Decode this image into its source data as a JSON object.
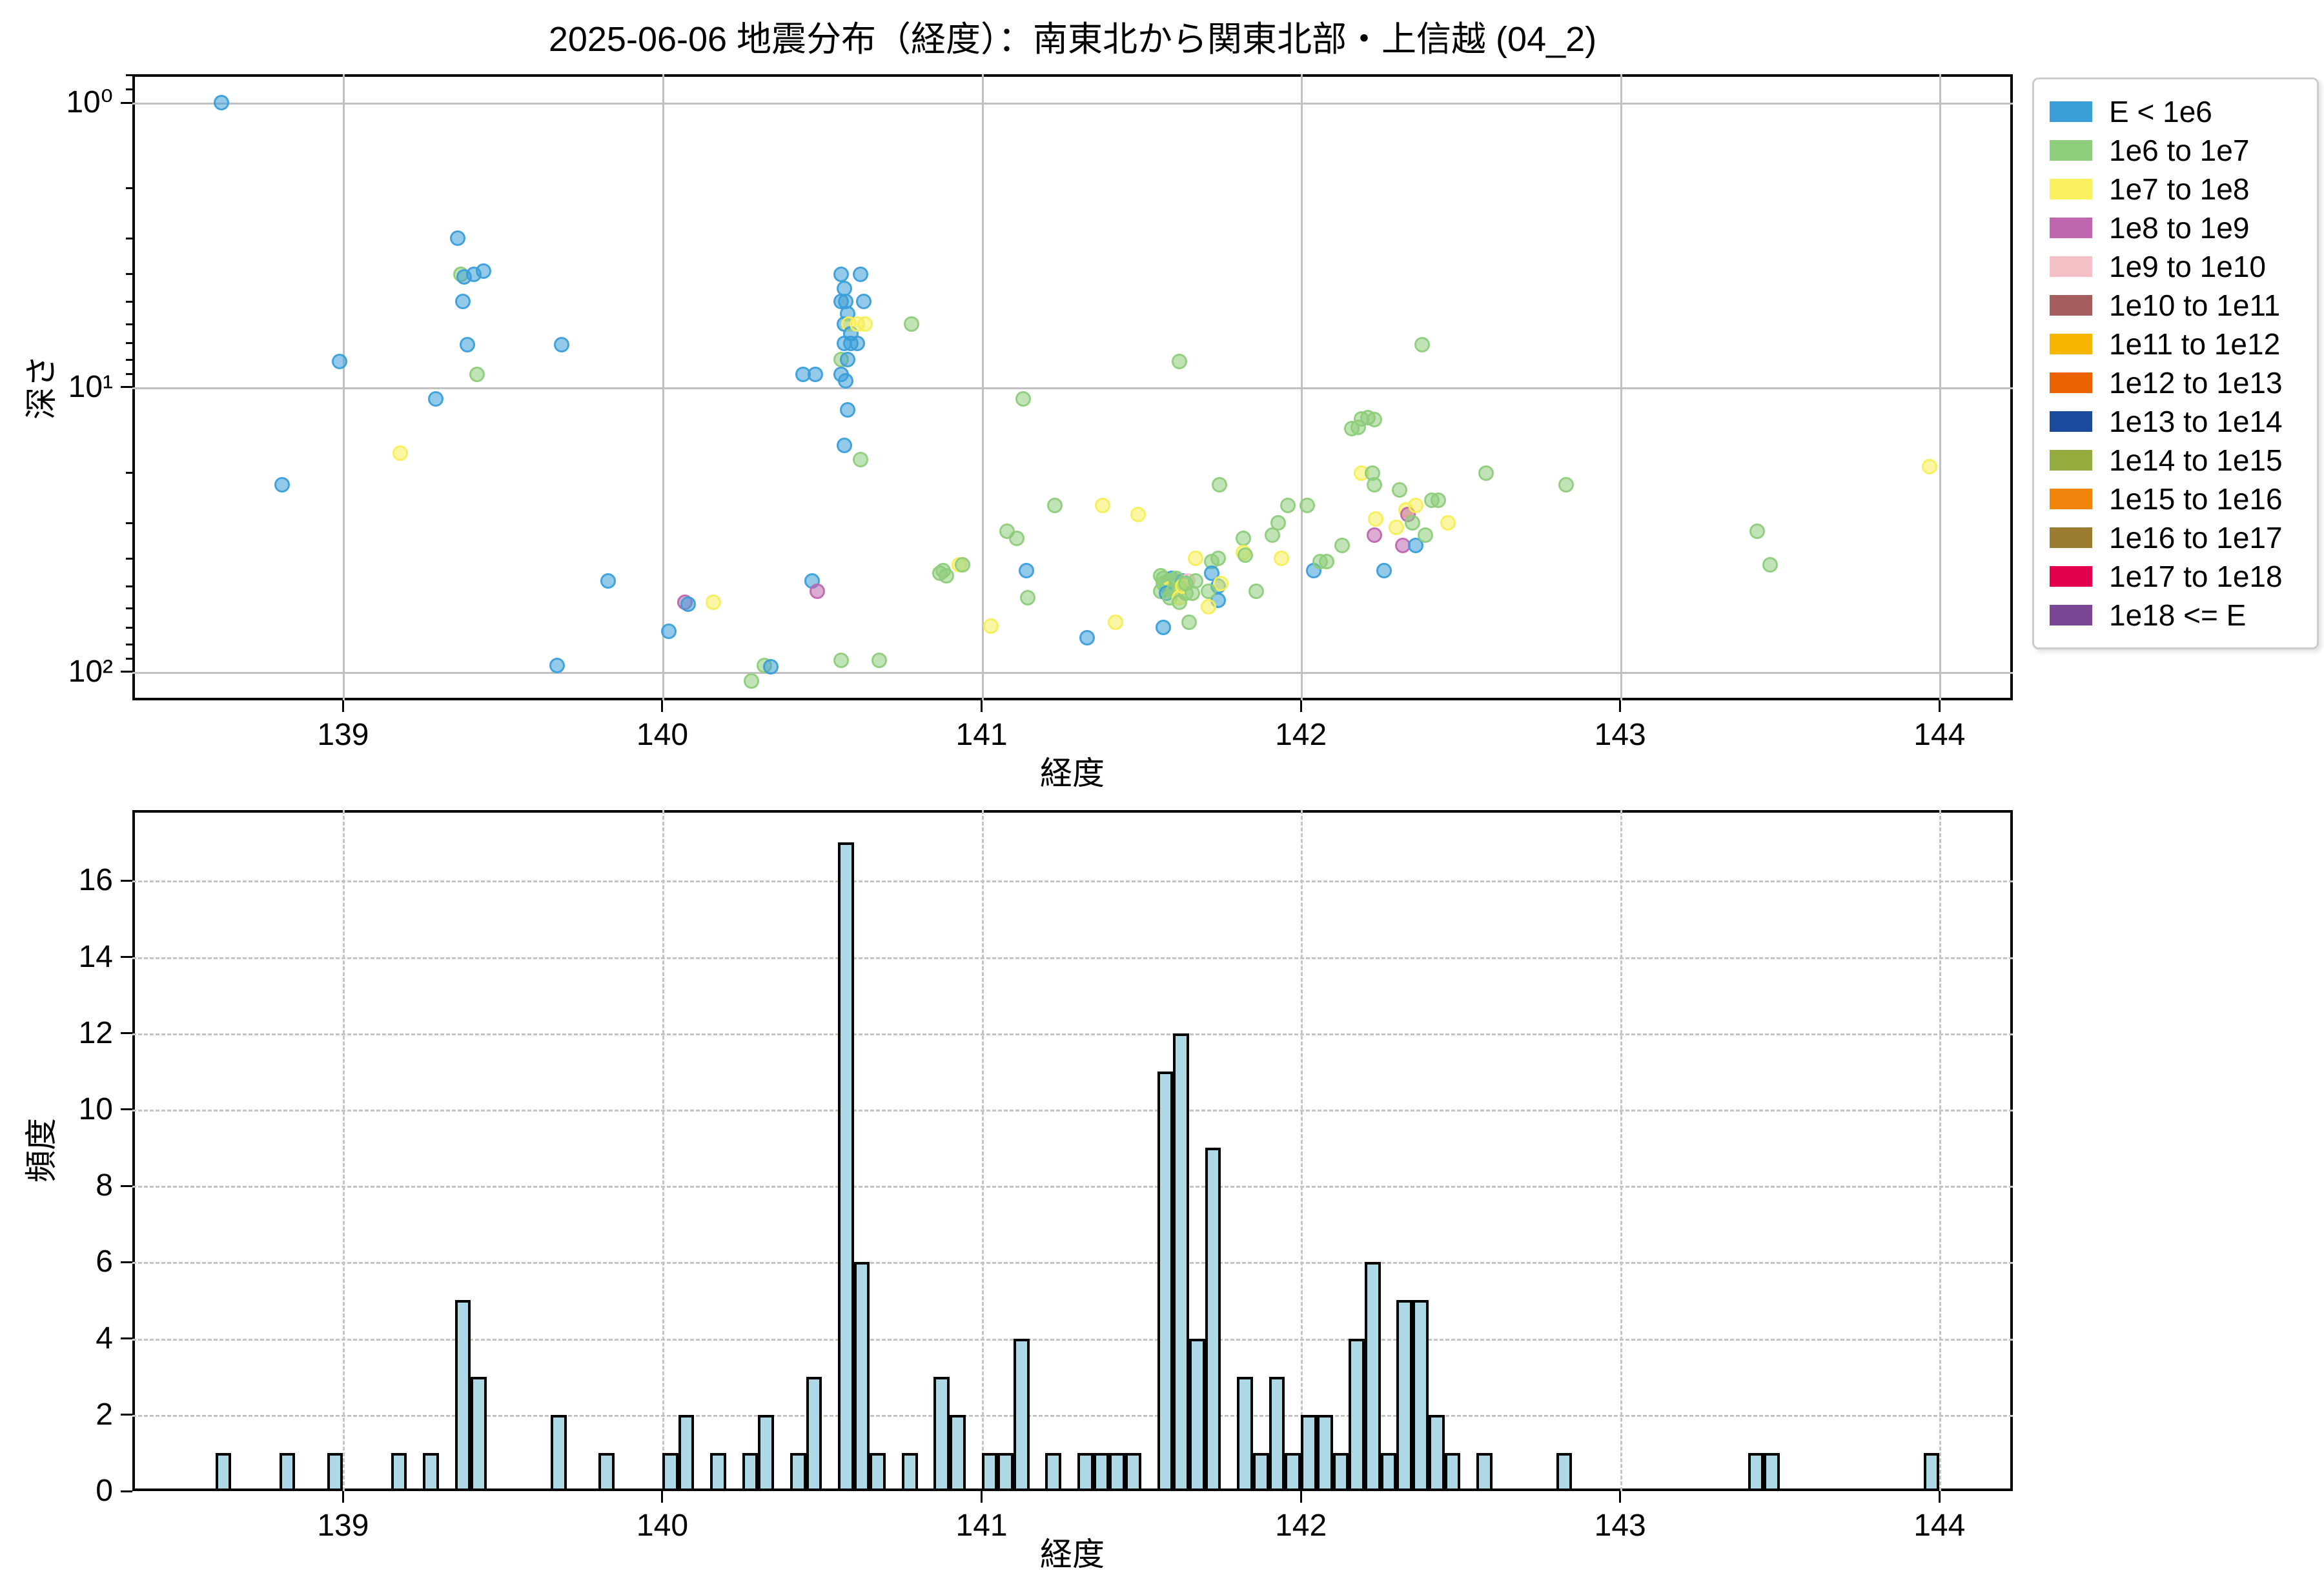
{
  "title": "2025-06-06 地震分布（経度）：南東北から関東北部・上信越 (04_2)",
  "point_colors": {
    "b": "#3A9FD9",
    "g": "#8ECD7C",
    "y": "#F6EE58",
    "m": "#BF66B0",
    "p": "#F5BFC6"
  },
  "legend": {
    "entries": [
      {
        "label": "E < 1e6",
        "color": "#3A9FD9"
      },
      {
        "label": "1e6 to 1e7",
        "color": "#8ECD7C"
      },
      {
        "label": "1e7 to 1e8",
        "color": "#F9F15F"
      },
      {
        "label": "1e8 to 1e9",
        "color": "#BF66B0"
      },
      {
        "label": "1e9 to 1e10",
        "color": "#F5BFC6"
      },
      {
        "label": "1e10 to 1e11",
        "color": "#A35D5C"
      },
      {
        "label": "1e11 to 1e12",
        "color": "#F6B600"
      },
      {
        "label": "1e12 to 1e13",
        "color": "#EB6300"
      },
      {
        "label": "1e13 to 1e14",
        "color": "#1C4A9C"
      },
      {
        "label": "1e14 to 1e15",
        "color": "#94AC3D"
      },
      {
        "label": "1e15 to 1e16",
        "color": "#F0830A"
      },
      {
        "label": "1e16 to 1e17",
        "color": "#9A7B30"
      },
      {
        "label": "1e17 to 1e18",
        "color": "#E3004F"
      },
      {
        "label": "1e18 <= E",
        "color": "#7C4697"
      }
    ]
  },
  "chart_data": [
    {
      "type": "scatter",
      "title": "2025-06-06 地震分布（経度）：南東北から関東北部・上信越 (04_2)",
      "xlabel": "経度",
      "ylabel": "深さ",
      "xlim": [
        138.34,
        144.23
      ],
      "ylim": [
        126,
        0.794
      ],
      "yscale": "log_inverted",
      "x_ticks": [
        139,
        140,
        141,
        142,
        143,
        144
      ],
      "y_ticks": [
        {
          "v": 1,
          "label": "10⁰"
        },
        {
          "v": 10,
          "label": "10¹"
        },
        {
          "v": 100,
          "label": "10²"
        }
      ],
      "grid": "solid",
      "legend_position": "outside upper right",
      "points": [
        [
          138.62,
          1.0,
          "b"
        ],
        [
          138.81,
          22,
          "b"
        ],
        [
          138.99,
          8.1,
          "b"
        ],
        [
          139.18,
          17,
          "y"
        ],
        [
          139.29,
          11,
          "b"
        ],
        [
          139.36,
          3.0,
          "b"
        ],
        [
          139.37,
          4.0,
          "g"
        ],
        [
          139.38,
          4.1,
          "b"
        ],
        [
          139.375,
          5.0,
          "b"
        ],
        [
          139.39,
          7.1,
          "b"
        ],
        [
          139.41,
          4.0,
          "b"
        ],
        [
          139.42,
          9.0,
          "g"
        ],
        [
          139.44,
          3.9,
          "b"
        ],
        [
          139.685,
          7.1,
          "b"
        ],
        [
          139.67,
          95,
          "b"
        ],
        [
          139.83,
          48,
          "b"
        ],
        [
          140.02,
          72,
          "b"
        ],
        [
          140.07,
          57,
          "m"
        ],
        [
          140.08,
          58,
          "b"
        ],
        [
          140.16,
          57,
          "y"
        ],
        [
          140.28,
          108,
          "g"
        ],
        [
          140.32,
          95,
          "g"
        ],
        [
          140.34,
          96,
          "b"
        ],
        [
          140.44,
          9.0,
          "b"
        ],
        [
          140.48,
          9.0,
          "b"
        ],
        [
          140.47,
          48,
          "b"
        ],
        [
          140.485,
          52,
          "m"
        ],
        [
          140.56,
          4.0,
          "b"
        ],
        [
          140.57,
          4.5,
          "b"
        ],
        [
          140.56,
          5.0,
          "b"
        ],
        [
          140.575,
          5.0,
          "b"
        ],
        [
          140.58,
          5.5,
          "b"
        ],
        [
          140.57,
          6.0,
          "b"
        ],
        [
          140.585,
          6.0,
          "y"
        ],
        [
          140.59,
          6.5,
          "b"
        ],
        [
          140.57,
          7.0,
          "b"
        ],
        [
          140.59,
          7.0,
          "b"
        ],
        [
          140.56,
          8.0,
          "g"
        ],
        [
          140.58,
          8.0,
          "b"
        ],
        [
          140.56,
          9.0,
          "b"
        ],
        [
          140.575,
          9.5,
          "b"
        ],
        [
          140.58,
          12,
          "b"
        ],
        [
          140.57,
          16,
          "b"
        ],
        [
          140.56,
          91,
          "g"
        ],
        [
          140.62,
          4.0,
          "b"
        ],
        [
          140.63,
          5.0,
          "b"
        ],
        [
          140.61,
          6.0,
          "y"
        ],
        [
          140.635,
          6.0,
          "y"
        ],
        [
          140.61,
          7.0,
          "b"
        ],
        [
          140.62,
          18,
          "g"
        ],
        [
          140.68,
          91,
          "g"
        ],
        [
          140.78,
          6.0,
          "g"
        ],
        [
          140.87,
          45,
          "g"
        ],
        [
          140.88,
          44,
          "g"
        ],
        [
          140.89,
          46,
          "g"
        ],
        [
          140.93,
          42,
          "y"
        ],
        [
          140.94,
          42,
          "g"
        ],
        [
          141.03,
          69,
          "y"
        ],
        [
          141.08,
          32,
          "g"
        ],
        [
          141.13,
          11,
          "g"
        ],
        [
          141.11,
          34,
          "g"
        ],
        [
          141.14,
          44,
          "b"
        ],
        [
          141.145,
          55,
          "g"
        ],
        [
          141.23,
          26,
          "g"
        ],
        [
          141.33,
          76,
          "b"
        ],
        [
          141.38,
          26,
          "y"
        ],
        [
          141.42,
          67,
          "y"
        ],
        [
          141.49,
          28,
          "y"
        ],
        [
          141.57,
          47,
          "g"
        ],
        [
          141.595,
          47,
          "b"
        ],
        [
          141.58,
          50,
          "g"
        ],
        [
          141.57,
          70,
          "b"
        ],
        [
          141.56,
          46,
          "g"
        ],
        [
          141.57,
          49,
          "g"
        ],
        [
          141.585,
          48,
          "g"
        ],
        [
          141.59,
          51,
          "y"
        ],
        [
          141.56,
          52,
          "g"
        ],
        [
          141.58,
          53,
          "b"
        ],
        [
          141.59,
          55,
          "g"
        ],
        [
          141.62,
          8.1,
          "g"
        ],
        [
          141.61,
          48,
          "g"
        ],
        [
          141.63,
          48,
          "b"
        ],
        [
          141.645,
          48,
          "p"
        ],
        [
          141.62,
          51,
          "g"
        ],
        [
          141.6,
          52,
          "g"
        ],
        [
          141.62,
          55,
          "y"
        ],
        [
          141.64,
          53,
          "g"
        ],
        [
          141.61,
          47,
          "g"
        ],
        [
          141.63,
          50,
          "y"
        ],
        [
          141.64,
          49,
          "g"
        ],
        [
          141.62,
          57,
          "g"
        ],
        [
          141.67,
          40,
          "y"
        ],
        [
          141.67,
          48,
          "g"
        ],
        [
          141.66,
          53,
          "g"
        ],
        [
          141.65,
          67,
          "g"
        ],
        [
          141.72,
          41,
          "g"
        ],
        [
          141.74,
          40,
          "g"
        ],
        [
          141.72,
          45,
          "b"
        ],
        [
          141.74,
          50,
          "b"
        ],
        [
          141.75,
          49,
          "y"
        ],
        [
          141.74,
          56,
          "b"
        ],
        [
          141.71,
          59,
          "y"
        ],
        [
          141.71,
          52,
          "g"
        ],
        [
          141.745,
          22,
          "g"
        ],
        [
          141.82,
          34,
          "g"
        ],
        [
          141.82,
          38,
          "y"
        ],
        [
          141.825,
          39,
          "g"
        ],
        [
          141.86,
          52,
          "g"
        ],
        [
          141.91,
          33,
          "g"
        ],
        [
          141.93,
          30,
          "g"
        ],
        [
          141.94,
          40,
          "y"
        ],
        [
          141.96,
          26,
          "g"
        ],
        [
          142.02,
          26,
          "g"
        ],
        [
          142.04,
          44,
          "b"
        ],
        [
          142.06,
          41,
          "g"
        ],
        [
          142.08,
          41,
          "g"
        ],
        [
          142.13,
          36,
          "g"
        ],
        [
          142.16,
          14,
          "g"
        ],
        [
          142.18,
          13.8,
          "g"
        ],
        [
          142.19,
          20,
          "y"
        ],
        [
          142.19,
          12.9,
          "g"
        ],
        [
          142.21,
          12.8,
          "g"
        ],
        [
          142.23,
          13,
          "g"
        ],
        [
          142.225,
          20,
          "g"
        ],
        [
          142.23,
          22,
          "g"
        ],
        [
          142.235,
          29,
          "y"
        ],
        [
          142.23,
          33,
          "m"
        ],
        [
          142.26,
          44,
          "b"
        ],
        [
          142.3,
          31,
          "y"
        ],
        [
          142.31,
          23,
          "g"
        ],
        [
          142.33,
          27,
          "y"
        ],
        [
          142.335,
          28,
          "m"
        ],
        [
          142.32,
          36,
          "m"
        ],
        [
          142.38,
          7.1,
          "g"
        ],
        [
          142.35,
          30,
          "g"
        ],
        [
          142.36,
          26,
          "y"
        ],
        [
          142.36,
          36,
          "b"
        ],
        [
          142.39,
          33,
          "g"
        ],
        [
          142.41,
          25,
          "g"
        ],
        [
          142.43,
          25,
          "g"
        ],
        [
          142.46,
          30,
          "y"
        ],
        [
          142.58,
          20,
          "g"
        ],
        [
          142.83,
          22,
          "g"
        ],
        [
          143.43,
          32,
          "g"
        ],
        [
          143.47,
          42,
          "g"
        ],
        [
          143.97,
          19,
          "y"
        ]
      ]
    },
    {
      "type": "histogram",
      "xlabel": "経度",
      "ylabel": "頻度",
      "xlim": [
        138.34,
        144.23
      ],
      "ylim": [
        0,
        17.85
      ],
      "x_ticks": [
        139,
        140,
        141,
        142,
        143,
        144
      ],
      "y_ticks": [
        0,
        2,
        4,
        6,
        8,
        10,
        12,
        14,
        16
      ],
      "grid": "dashed",
      "bar_color": "#ADD8E6",
      "bin_width": 0.05,
      "bars": [
        [
          138.6,
          1
        ],
        [
          138.8,
          1
        ],
        [
          138.95,
          1
        ],
        [
          139.15,
          1
        ],
        [
          139.25,
          1
        ],
        [
          139.35,
          5
        ],
        [
          139.4,
          3
        ],
        [
          139.65,
          2
        ],
        [
          139.8,
          1
        ],
        [
          140.0,
          1
        ],
        [
          140.05,
          2
        ],
        [
          140.15,
          1
        ],
        [
          140.25,
          1
        ],
        [
          140.3,
          2
        ],
        [
          140.4,
          1
        ],
        [
          140.45,
          3
        ],
        [
          140.55,
          17
        ],
        [
          140.6,
          6
        ],
        [
          140.65,
          1
        ],
        [
          140.75,
          1
        ],
        [
          140.85,
          3
        ],
        [
          140.9,
          2
        ],
        [
          141.0,
          1
        ],
        [
          141.05,
          1
        ],
        [
          141.1,
          4
        ],
        [
          141.2,
          1
        ],
        [
          141.3,
          1
        ],
        [
          141.35,
          1
        ],
        [
          141.4,
          1
        ],
        [
          141.45,
          1
        ],
        [
          141.55,
          11
        ],
        [
          141.6,
          12
        ],
        [
          141.65,
          4
        ],
        [
          141.7,
          9
        ],
        [
          141.8,
          3
        ],
        [
          141.85,
          1
        ],
        [
          141.9,
          3
        ],
        [
          141.95,
          1
        ],
        [
          142.0,
          2
        ],
        [
          142.05,
          2
        ],
        [
          142.1,
          1
        ],
        [
          142.15,
          4
        ],
        [
          142.2,
          6
        ],
        [
          142.25,
          1
        ],
        [
          142.3,
          5
        ],
        [
          142.35,
          5
        ],
        [
          142.4,
          2
        ],
        [
          142.45,
          1
        ],
        [
          142.55,
          1
        ],
        [
          142.8,
          1
        ],
        [
          143.4,
          1
        ],
        [
          143.45,
          1
        ],
        [
          143.95,
          1
        ]
      ]
    }
  ]
}
